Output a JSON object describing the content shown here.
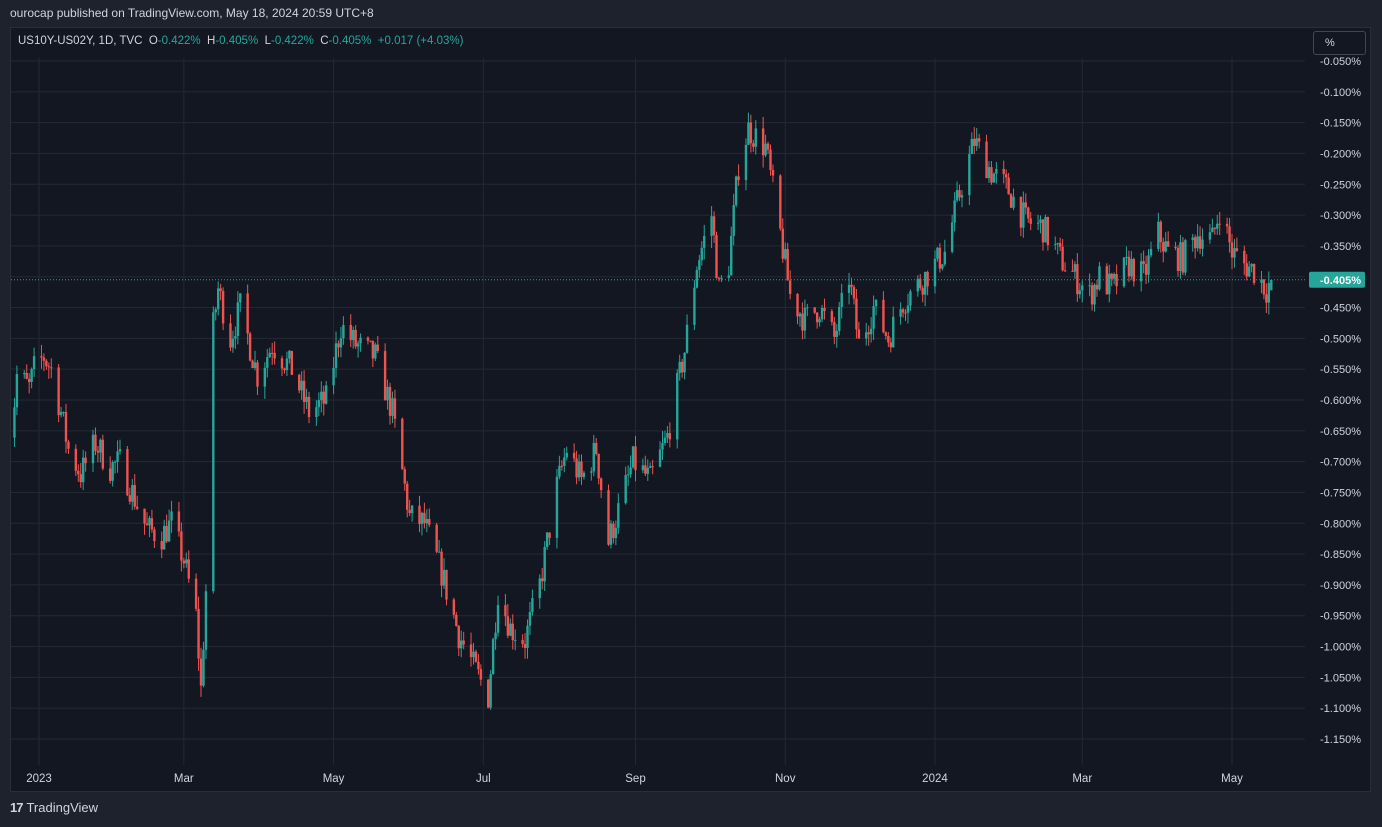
{
  "header": {
    "published": "ourocap published on TradingView.com, May 18, 2024 20:59 UTC+8"
  },
  "legend": {
    "symbol": "US10Y-US02Y, 1D, TVC",
    "o_label": "O",
    "o_value": "-0.422%",
    "h_label": "H",
    "h_value": "-0.405%",
    "l_label": "L",
    "l_value": "-0.422%",
    "c_label": "C",
    "c_value": "-0.405%",
    "change": "+0.017 (+4.03%)"
  },
  "scale_button": {
    "label": "%"
  },
  "footer": {
    "brand": "TradingView",
    "logo_text": "17"
  },
  "colors": {
    "up": "#26a69a",
    "down": "#ef5350",
    "grid": "#242833",
    "background": "#131722",
    "text": "#d1d4dc",
    "last_price_bg": "#26a69a"
  },
  "chart_data": {
    "type": "candlestick",
    "title": "",
    "ylabel": "",
    "xlabel": "",
    "y_unit": "%",
    "ylim": [
      -1.17,
      -0.045
    ],
    "grid": true,
    "y_ticks": [
      "-0.050%",
      "-0.100%",
      "-0.150%",
      "-0.200%",
      "-0.250%",
      "-0.300%",
      "-0.350%",
      "-0.400%",
      "-0.450%",
      "-0.500%",
      "-0.550%",
      "-0.600%",
      "-0.650%",
      "-0.700%",
      "-0.750%",
      "-0.800%",
      "-0.850%",
      "-0.900%",
      "-0.950%",
      "-1.000%",
      "-1.050%",
      "-1.100%",
      "-1.150%"
    ],
    "x_ticks": [
      "2023",
      "Mar",
      "May",
      "Jul",
      "Sep",
      "Nov",
      "2024",
      "Mar",
      "May"
    ],
    "last_price": {
      "label": "-0.405%",
      "value": -0.405
    },
    "approx_close_path": [
      [
        "2022-12-20",
        -0.69
      ],
      [
        "2022-12-23",
        -0.56
      ],
      [
        "2022-12-28",
        -0.58
      ],
      [
        "2022-12-30",
        -0.55
      ],
      [
        "2023-01-03",
        -0.53
      ],
      [
        "2023-01-06",
        -0.55
      ],
      [
        "2023-01-10",
        -0.62
      ],
      [
        "2023-01-13",
        -0.68
      ],
      [
        "2023-01-18",
        -0.72
      ],
      [
        "2023-01-24",
        -0.67
      ],
      [
        "2023-01-30",
        -0.71
      ],
      [
        "2023-02-03",
        -0.7
      ],
      [
        "2023-02-08",
        -0.75
      ],
      [
        "2023-02-14",
        -0.81
      ],
      [
        "2023-02-20",
        -0.82
      ],
      [
        "2023-02-24",
        -0.8
      ],
      [
        "2023-03-01",
        -0.86
      ],
      [
        "2023-03-06",
        -0.95
      ],
      [
        "2023-03-08",
        -1.07
      ],
      [
        "2023-03-10",
        -0.91
      ],
      [
        "2023-03-13",
        -0.48
      ],
      [
        "2023-03-15",
        -0.42
      ],
      [
        "2023-03-20",
        -0.5
      ],
      [
        "2023-03-24",
        -0.45
      ],
      [
        "2023-03-31",
        -0.56
      ],
      [
        "2023-04-06",
        -0.51
      ],
      [
        "2023-04-14",
        -0.55
      ],
      [
        "2023-04-21",
        -0.62
      ],
      [
        "2023-04-28",
        -0.6
      ],
      [
        "2023-05-04",
        -0.48
      ],
      [
        "2023-05-10",
        -0.51
      ],
      [
        "2023-05-18",
        -0.53
      ],
      [
        "2023-05-25",
        -0.62
      ],
      [
        "2023-06-01",
        -0.79
      ],
      [
        "2023-06-07",
        -0.8
      ],
      [
        "2023-06-14",
        -0.88
      ],
      [
        "2023-06-21",
        -0.98
      ],
      [
        "2023-06-28",
        -1.04
      ],
      [
        "2023-07-03",
        -1.08
      ],
      [
        "2023-07-07",
        -0.91
      ],
      [
        "2023-07-12",
        -0.97
      ],
      [
        "2023-07-18",
        -0.99
      ],
      [
        "2023-07-24",
        -0.9
      ],
      [
        "2023-07-31",
        -0.74
      ],
      [
        "2023-08-04",
        -0.68
      ],
      [
        "2023-08-10",
        -0.73
      ],
      [
        "2023-08-16",
        -0.68
      ],
      [
        "2023-08-21",
        -0.83
      ],
      [
        "2023-08-25",
        -0.78
      ],
      [
        "2023-08-31",
        -0.7
      ],
      [
        "2023-09-07",
        -0.73
      ],
      [
        "2023-09-14",
        -0.66
      ],
      [
        "2023-09-21",
        -0.52
      ],
      [
        "2023-09-26",
        -0.38
      ],
      [
        "2023-10-02",
        -0.3
      ],
      [
        "2023-10-05",
        -0.42
      ],
      [
        "2023-10-09",
        -0.38
      ],
      [
        "2023-10-13",
        -0.22
      ],
      [
        "2023-10-17",
        -0.16
      ],
      [
        "2023-10-24",
        -0.19
      ],
      [
        "2023-10-30",
        -0.33
      ],
      [
        "2023-11-03",
        -0.43
      ],
      [
        "2023-11-09",
        -0.47
      ],
      [
        "2023-11-15",
        -0.45
      ],
      [
        "2023-11-21",
        -0.5
      ],
      [
        "2023-11-27",
        -0.4
      ],
      [
        "2023-12-01",
        -0.51
      ],
      [
        "2023-12-07",
        -0.45
      ],
      [
        "2023-12-13",
        -0.5
      ],
      [
        "2023-12-19",
        -0.44
      ],
      [
        "2023-12-28",
        -0.4
      ],
      [
        "2024-01-05",
        -0.36
      ],
      [
        "2024-01-12",
        -0.25
      ],
      [
        "2024-01-17",
        -0.18
      ],
      [
        "2024-01-24",
        -0.23
      ],
      [
        "2024-01-31",
        -0.26
      ],
      [
        "2024-02-07",
        -0.31
      ],
      [
        "2024-02-14",
        -0.32
      ],
      [
        "2024-02-21",
        -0.37
      ],
      [
        "2024-02-27",
        -0.4
      ],
      [
        "2024-03-04",
        -0.43
      ],
      [
        "2024-03-08",
        -0.4
      ],
      [
        "2024-03-13",
        -0.42
      ],
      [
        "2024-03-20",
        -0.38
      ],
      [
        "2024-03-26",
        -0.4
      ],
      [
        "2024-04-01",
        -0.33
      ],
      [
        "2024-04-05",
        -0.36
      ],
      [
        "2024-04-11",
        -0.37
      ],
      [
        "2024-04-17",
        -0.33
      ],
      [
        "2024-04-23",
        -0.34
      ],
      [
        "2024-04-26",
        -0.29
      ],
      [
        "2024-05-01",
        -0.36
      ],
      [
        "2024-05-06",
        -0.38
      ],
      [
        "2024-05-10",
        -0.39
      ],
      [
        "2024-05-15",
        -0.42
      ],
      [
        "2024-05-17",
        -0.405
      ]
    ]
  }
}
